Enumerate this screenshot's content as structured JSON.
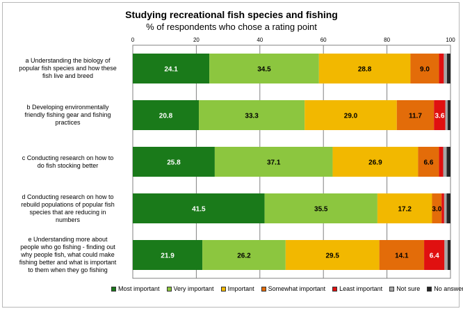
{
  "chart_data": {
    "type": "bar",
    "orientation": "horizontal",
    "stacked": true,
    "title": "Studying recreational fish species and fishing",
    "subtitle": "% of respondents who chose a rating point",
    "xlim": [
      0,
      100
    ],
    "x_ticks": [
      "0",
      "20",
      "40",
      "60",
      "80",
      "100"
    ],
    "grid": true,
    "legend_position": "bottom",
    "categories": [
      "a Understanding the biology of popular fish species and how these fish live and breed",
      "b Developing environmentally friendly fishing gear and fishing practices",
      "c Conducting research on how to do fish stocking better",
      "d Conducting research on how to rebuild populations of popular fish species that are reducing in numbers",
      "e Understanding more about people who go fishing - finding out why people fish, what could make fishing better and what is important to them when they go fishing"
    ],
    "category_lines": [
      [
        "a Understanding the biology of",
        "popular fish species and how these",
        "fish live and breed"
      ],
      [
        "b Developing environmentally",
        "friendly fishing gear and fishing",
        "practices"
      ],
      [
        "c Conducting research on how to",
        "do fish stocking better"
      ],
      [
        "d Conducting research on how to",
        "rebuild populations of popular fish",
        "species that are reducing in",
        "numbers"
      ],
      [
        "e Understanding more about",
        "people who go fishing - finding out",
        "why people fish, what could make",
        "fishing better and what is important",
        "to them when they go fishing"
      ]
    ],
    "series": [
      {
        "name": "Most important",
        "color": "#1a7a1a",
        "values": [
          24.1,
          20.8,
          25.8,
          41.5,
          21.9
        ],
        "labels": [
          "24.1",
          "20.8",
          "25.8",
          "41.5",
          "21.9"
        ],
        "label_color": "#ffffff"
      },
      {
        "name": "Very important",
        "color": "#8cc63f",
        "values": [
          34.5,
          33.3,
          37.1,
          35.5,
          26.2
        ],
        "labels": [
          "34.5",
          "33.3",
          "37.1",
          "35.5",
          "26.2"
        ],
        "label_color": "#000000"
      },
      {
        "name": "Important",
        "color": "#f2b800",
        "values": [
          28.8,
          29.0,
          26.9,
          17.2,
          29.5
        ],
        "labels": [
          "28.8",
          "29.0",
          "26.9",
          "17.2",
          "29.5"
        ],
        "label_color": "#000000"
      },
      {
        "name": "Somewhat important",
        "color": "#e36c09",
        "values": [
          9.0,
          11.7,
          6.6,
          3.0,
          14.1
        ],
        "labels": [
          "9.0",
          "11.7",
          "6.6",
          "3.0",
          "14.1"
        ],
        "label_color": "#000000"
      },
      {
        "name": "Least important",
        "color": "#e01010",
        "values": [
          1.5,
          3.6,
          1.3,
          0.8,
          6.4
        ],
        "labels": [
          "",
          "3.6",
          "",
          "",
          "6.4"
        ],
        "label_color": "#ffffff"
      },
      {
        "name": "Not sure",
        "color": "#a6a6a6",
        "values": [
          1.0,
          0.7,
          1.1,
          0.8,
          1.0
        ],
        "labels": [
          "",
          "",
          "",
          "",
          ""
        ],
        "label_color": "#000000"
      },
      {
        "name": "No answer",
        "color": "#262626",
        "values": [
          1.1,
          0.9,
          1.2,
          1.2,
          0.9
        ],
        "labels": [
          "",
          "",
          "",
          "",
          ""
        ],
        "label_color": "#ffffff"
      }
    ]
  }
}
